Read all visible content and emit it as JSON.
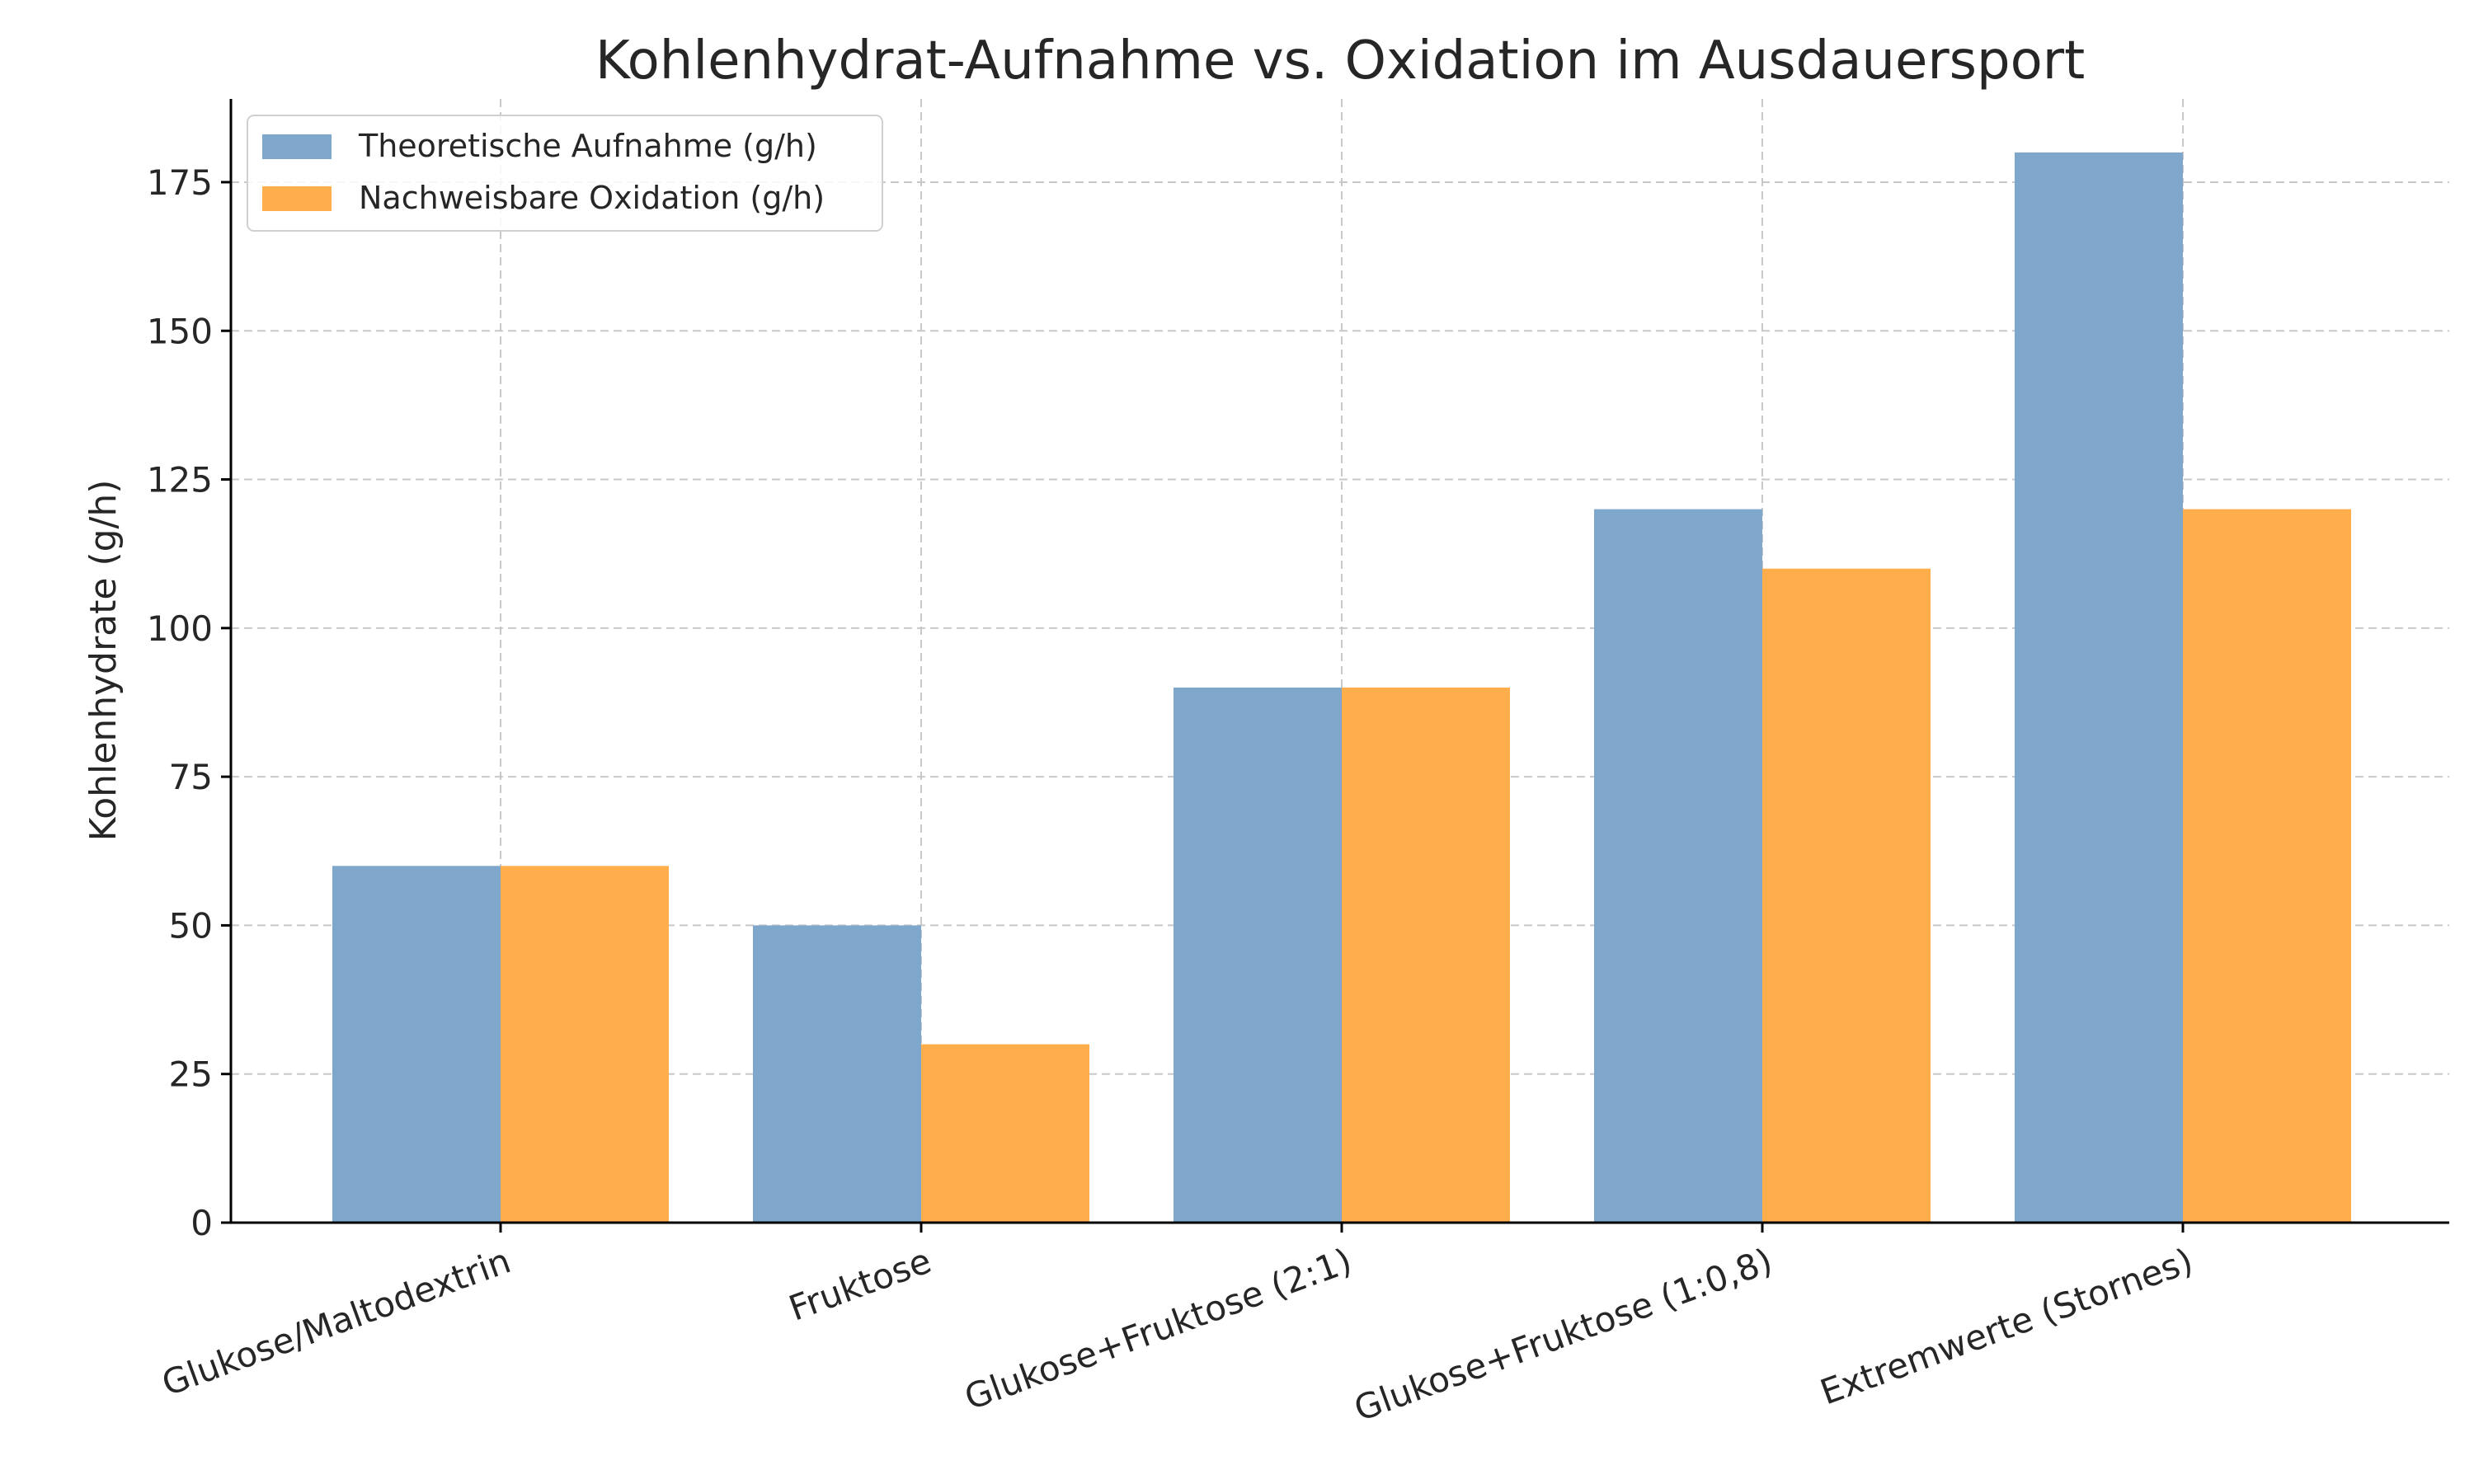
{
  "chart_data": {
    "type": "bar",
    "title": "Kohlenhydrat-Aufnahme vs. Oxidation im Ausdauersport",
    "xlabel": "",
    "ylabel": "Kohlenhydrate (g/h)",
    "categories": [
      "Glukose/Maltodextrin",
      "Fruktose",
      "Glukose+Fruktose (2:1)",
      "Glukose+Fruktose (1:0,8)",
      "Extremwerte (Stornes)"
    ],
    "series": [
      {
        "name": "Theoretische Aufnahme (g/h)",
        "values": [
          60,
          50,
          90,
          120,
          180
        ],
        "color": "#7ea7cb"
      },
      {
        "name": "Nachweisbare Oxidation (g/h)",
        "values": [
          60,
          30,
          90,
          110,
          120
        ],
        "color": "#ffae4b"
      }
    ],
    "ylim": [
      0,
      189
    ],
    "yticks": [
      0,
      25,
      50,
      75,
      100,
      125,
      150,
      175
    ],
    "grid": true,
    "legend_position": "top-left"
  }
}
